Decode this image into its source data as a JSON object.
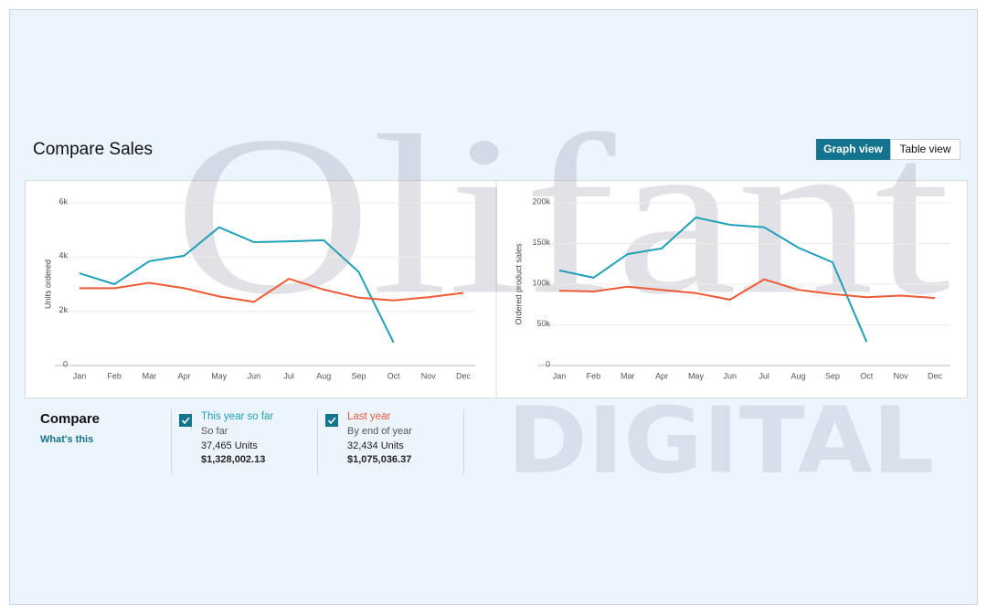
{
  "header": {
    "title": "Compare Sales",
    "buttons": [
      "Graph view",
      "Table view"
    ]
  },
  "watermark": {
    "line1": "Olifant",
    "line2": "DIGITAL"
  },
  "chart_data": [
    {
      "type": "line",
      "ylabel": "Units ordered",
      "categories": [
        "Jan",
        "Feb",
        "Mar",
        "Apr",
        "May",
        "Jun",
        "Jul",
        "Aug",
        "Sep",
        "Oct",
        "Nov",
        "Dec"
      ],
      "ylim": [
        0,
        6000
      ],
      "yticks": [
        0,
        {
          "value": 2000,
          "label": "2k"
        },
        {
          "value": 4000,
          "label": "4k"
        },
        {
          "value": 6000,
          "label": "6k"
        }
      ],
      "grid": true,
      "series": [
        {
          "name": "This year so far",
          "color": "#1fa0b8",
          "values": [
            3400,
            3000,
            3850,
            4050,
            5100,
            4550,
            4580,
            4620,
            3450,
            850,
            null,
            null
          ]
        },
        {
          "name": "Last year",
          "color": "#ee5a36",
          "values": [
            2850,
            2850,
            3050,
            2850,
            2550,
            2350,
            3200,
            2800,
            2500,
            2400,
            2520,
            2680
          ]
        }
      ]
    },
    {
      "type": "line",
      "ylabel": "Ordered product sales",
      "categories": [
        "Jan",
        "Feb",
        "Mar",
        "Apr",
        "May",
        "Jun",
        "Jul",
        "Aug",
        "Sep",
        "Oct",
        "Nov",
        "Dec"
      ],
      "ylim": [
        0,
        200000
      ],
      "yticks": [
        0,
        {
          "value": 50000,
          "label": "50k"
        },
        {
          "value": 100000,
          "label": "100k"
        },
        {
          "value": 150000,
          "label": "150k"
        },
        {
          "value": 200000,
          "label": "200k"
        }
      ],
      "grid": true,
      "series": [
        {
          "color": "#1fa0b8",
          "values": [
            117000,
            108000,
            137000,
            144000,
            182000,
            173000,
            170000,
            145000,
            127000,
            29000,
            null,
            null
          ]
        },
        {
          "color": "#ee5a36",
          "values": [
            92000,
            91000,
            97000,
            93000,
            89000,
            81000,
            106000,
            93000,
            88000,
            84000,
            86000,
            83000
          ]
        }
      ]
    }
  ],
  "compare": {
    "title": "Compare",
    "link": "What's this",
    "items": [
      {
        "sub": "So far",
        "units": "37,465 Units",
        "sales": "$1,328,002.13"
      },
      {
        "sub": "By end of year",
        "units": "32,434 Units",
        "sales": "$1,075,036.37"
      }
    ]
  }
}
